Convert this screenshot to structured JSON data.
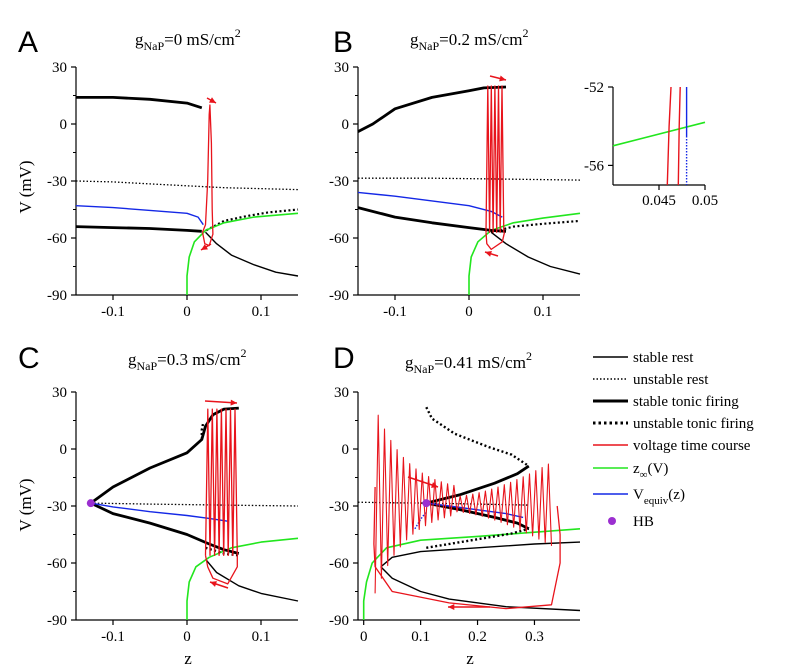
{
  "colors": {
    "rest": "#000000",
    "voltage": "#e8141c",
    "zinf": "#22e61e",
    "vequiv": "#1428e6",
    "hb": "#9b2fd0"
  },
  "panel_labels": {
    "A": "A",
    "B": "B",
    "C": "C",
    "D": "D"
  },
  "panel_titles": {
    "A": {
      "pre": "g",
      "sub": "NaP",
      "post": "=0 mS/cm",
      "sup": "2"
    },
    "B": {
      "pre": "g",
      "sub": "NaP",
      "post": "=0.2 mS/cm",
      "sup": "2"
    },
    "C": {
      "pre": "g",
      "sub": "NaP",
      "post": "=0.3 mS/cm",
      "sup": "2"
    },
    "D": {
      "pre": "g",
      "sub": "NaP",
      "post": "=0.41 mS/cm",
      "sup": "2"
    }
  },
  "axis_labels": {
    "y": "V (mV)",
    "x": "z"
  },
  "legend": {
    "stable_rest": "stable rest",
    "unstable_rest": "unstable rest",
    "stable_tonic": "stable tonic firing",
    "unstable_tonic": "unstable tonic firing",
    "voltage": "voltage time course",
    "zinf_pre": "z",
    "zinf_sub": "∞",
    "zinf_post": "(V)",
    "vequiv_pre": "V",
    "vequiv_sub": "equiv",
    "vequiv_post": "(z)",
    "hb": "HB"
  },
  "chart_data": [
    {
      "panel": "A",
      "type": "line",
      "xlim": [
        -0.15,
        0.15
      ],
      "ylim": [
        -90,
        30
      ],
      "xticks": [
        -0.1,
        0,
        0.1
      ],
      "xtick_labels": [
        "-0.1",
        "0",
        "0.1"
      ],
      "yticks": [
        -90,
        -60,
        -30,
        0,
        30
      ],
      "ytick_labels": [
        "-90",
        "-60",
        "-30",
        "0",
        "30"
      ],
      "series": {
        "stable_tonic_upper": [
          [
            -0.15,
            14
          ],
          [
            -0.1,
            14
          ],
          [
            -0.05,
            13
          ],
          [
            0,
            11
          ],
          [
            0.02,
            8.5
          ]
        ],
        "stable_tonic_lower": [
          [
            -0.15,
            -54
          ],
          [
            -0.1,
            -54.5
          ],
          [
            -0.05,
            -55
          ],
          [
            0,
            -56
          ],
          [
            0.02,
            -56.5
          ]
        ],
        "stable_rest": [
          [
            0.025,
            -57
          ],
          [
            0.04,
            -63
          ],
          [
            0.06,
            -69
          ],
          [
            0.09,
            -74
          ],
          [
            0.12,
            -78
          ],
          [
            0.15,
            -80
          ]
        ],
        "unstable_rest": [
          [
            -0.15,
            -30
          ],
          [
            -0.1,
            -30.5
          ],
          [
            -0.05,
            -31.5
          ],
          [
            0,
            -32.5
          ],
          [
            0.05,
            -33.5
          ],
          [
            0.15,
            -34.5
          ]
        ],
        "unstable_tonic": [
          [
            0.026,
            -56
          ],
          [
            0.05,
            -51
          ],
          [
            0.08,
            -48.5
          ],
          [
            0.11,
            -46.5
          ],
          [
            0.15,
            -45
          ]
        ],
        "zinf": [
          [
            0,
            -90
          ],
          [
            0,
            -80
          ],
          [
            0.003,
            -70
          ],
          [
            0.01,
            -62
          ],
          [
            0.025,
            -56
          ],
          [
            0.05,
            -52
          ],
          [
            0.09,
            -49
          ],
          [
            0.15,
            -47
          ]
        ],
        "vequiv": [
          [
            -0.15,
            -43
          ],
          [
            -0.1,
            -44
          ],
          [
            -0.05,
            -45.5
          ],
          [
            0,
            -47
          ],
          [
            0.015,
            -49
          ],
          [
            0.022,
            -53
          ]
        ],
        "voltage": [
          [
            0.021,
            -57
          ],
          [
            0.025,
            -53
          ],
          [
            0.028,
            -30
          ],
          [
            0.03,
            5
          ],
          [
            0.031,
            10
          ],
          [
            0.033,
            -10
          ],
          [
            0.034,
            -45
          ],
          [
            0.035,
            -58
          ],
          [
            0.03,
            -64
          ],
          [
            0.024,
            -63
          ],
          [
            0.021,
            -57
          ]
        ]
      }
    },
    {
      "panel": "B",
      "type": "line",
      "xlim": [
        -0.15,
        0.15
      ],
      "ylim": [
        -90,
        30
      ],
      "xticks": [
        -0.1,
        0,
        0.1
      ],
      "xtick_labels": [
        "-0.1",
        "0",
        "0.1"
      ],
      "yticks": [
        -90,
        -60,
        -30,
        0,
        30
      ],
      "ytick_labels": [
        "-90",
        "-60",
        "-30",
        "0",
        "30"
      ],
      "series": {
        "stable_tonic_upper": [
          [
            -0.15,
            -4
          ],
          [
            -0.13,
            0
          ],
          [
            -0.1,
            8
          ],
          [
            -0.05,
            14
          ],
          [
            0,
            17.5
          ],
          [
            0.02,
            19
          ],
          [
            0.05,
            19.5
          ]
        ],
        "stable_tonic_lower": [
          [
            -0.15,
            -44
          ],
          [
            -0.1,
            -49
          ],
          [
            -0.05,
            -52
          ],
          [
            0,
            -54.5
          ],
          [
            0.03,
            -56
          ],
          [
            0.05,
            -56.5
          ]
        ],
        "stable_rest": [
          [
            0.03,
            -57
          ],
          [
            0.05,
            -63
          ],
          [
            0.08,
            -70
          ],
          [
            0.11,
            -75
          ],
          [
            0.15,
            -79
          ]
        ],
        "unstable_rest": [
          [
            -0.15,
            -28.5
          ],
          [
            -0.05,
            -28.5
          ],
          [
            0.05,
            -29
          ],
          [
            0.15,
            -29.5
          ]
        ],
        "unstable_tonic": [
          [
            0.03,
            -57
          ],
          [
            0.06,
            -54
          ],
          [
            0.1,
            -52.5
          ],
          [
            0.15,
            -51
          ]
        ],
        "zinf": [
          [
            0,
            -90
          ],
          [
            0,
            -80
          ],
          [
            0.003,
            -70
          ],
          [
            0.012,
            -62
          ],
          [
            0.03,
            -56
          ],
          [
            0.06,
            -52
          ],
          [
            0.1,
            -49.5
          ],
          [
            0.15,
            -47
          ]
        ],
        "vequiv": [
          [
            -0.15,
            -36
          ],
          [
            -0.1,
            -38
          ],
          [
            -0.05,
            -40.5
          ],
          [
            0,
            -43
          ],
          [
            0.03,
            -46
          ],
          [
            0.045,
            -49
          ]
        ],
        "voltage_cycles": 5,
        "voltage_zrange": [
          0.023,
          0.047
        ],
        "voltage_vrange": [
          -57,
          20
        ]
      },
      "inset": {
        "xlim": [
          0.04,
          0.05
        ],
        "ylim": [
          -57,
          -52
        ],
        "xticks": [
          0.045,
          0.05
        ],
        "xtick_labels": [
          "0.045",
          "0.05"
        ],
        "yticks": [
          -56,
          -52
        ],
        "ytick_labels": [
          "-56",
          "-52"
        ],
        "zinf": [
          [
            0.04,
            -55
          ],
          [
            0.05,
            -53.8
          ]
        ],
        "voltage_a": [
          [
            0.0463,
            -52
          ],
          [
            0.0461,
            -54
          ],
          [
            0.0459,
            -57
          ]
        ],
        "voltage_b": [
          [
            0.0473,
            -52
          ],
          [
            0.0472,
            -54
          ],
          [
            0.0471,
            -57
          ]
        ],
        "vequiv_solid": [
          [
            0.048,
            -52
          ],
          [
            0.048,
            -54.5
          ]
        ],
        "vequiv_dotted": [
          [
            0.048,
            -54.5
          ],
          [
            0.048,
            -57
          ]
        ]
      }
    },
    {
      "panel": "C",
      "type": "line",
      "xlim": [
        -0.15,
        0.15
      ],
      "ylim": [
        -90,
        30
      ],
      "xticks": [
        -0.1,
        0,
        0.1
      ],
      "xtick_labels": [
        "-0.1",
        "0",
        "0.1"
      ],
      "yticks": [
        -90,
        -60,
        -30,
        0,
        30
      ],
      "ytick_labels": [
        "-90",
        "-60",
        "-30",
        "0",
        "30"
      ],
      "hb": [
        -0.13,
        -28.5
      ],
      "series": {
        "stable_tonic_upper": [
          [
            -0.13,
            -28.5
          ],
          [
            -0.1,
            -20
          ],
          [
            -0.05,
            -10
          ],
          [
            0,
            -2
          ],
          [
            0.02,
            5
          ],
          [
            0.025,
            12
          ],
          [
            0.035,
            18
          ],
          [
            0.05,
            21
          ],
          [
            0.07,
            21.5
          ]
        ],
        "stable_tonic_lower": [
          [
            -0.13,
            -28.5
          ],
          [
            -0.1,
            -34
          ],
          [
            -0.05,
            -39
          ],
          [
            0,
            -45
          ],
          [
            0.03,
            -50
          ],
          [
            0.05,
            -53
          ],
          [
            0.07,
            -55
          ]
        ],
        "stable_rest": [
          [
            0.025,
            -58
          ],
          [
            0.04,
            -65
          ],
          [
            0.07,
            -72
          ],
          [
            0.1,
            -76
          ],
          [
            0.15,
            -80
          ]
        ],
        "unstable_rest": [
          [
            -0.13,
            -28.5
          ],
          [
            -0.05,
            -29
          ],
          [
            0.05,
            -29.5
          ],
          [
            0.15,
            -30
          ]
        ],
        "unstable_tonic_upper": [
          [
            0.02,
            5
          ],
          [
            0.02,
            10
          ],
          [
            0.022,
            14
          ]
        ],
        "unstable_tonic_lower": [
          [
            0.025,
            -52
          ],
          [
            0.05,
            -55
          ],
          [
            0.07,
            -56
          ]
        ],
        "zinf": [
          [
            0,
            -90
          ],
          [
            0,
            -80
          ],
          [
            0.003,
            -70
          ],
          [
            0.012,
            -62
          ],
          [
            0.03,
            -57
          ],
          [
            0.06,
            -52
          ],
          [
            0.1,
            -49
          ],
          [
            0.15,
            -47
          ]
        ],
        "vequiv": [
          [
            -0.13,
            -28.5
          ],
          [
            -0.1,
            -30.5
          ],
          [
            -0.05,
            -33
          ],
          [
            0,
            -35
          ],
          [
            0.03,
            -36.5
          ],
          [
            0.055,
            -38
          ]
        ],
        "voltage_cycles": 7,
        "voltage_zrange": [
          0.025,
          0.068
        ],
        "voltage_vrange": [
          -56,
          21
        ]
      }
    },
    {
      "panel": "D",
      "type": "line",
      "xlim": [
        -0.01,
        0.38
      ],
      "ylim": [
        -90,
        30
      ],
      "xticks": [
        0,
        0.1,
        0.2,
        0.3
      ],
      "xtick_labels": [
        "0",
        "0.1",
        "0.2",
        "0.3"
      ],
      "yticks": [
        -90,
        -60,
        -30,
        0,
        30
      ],
      "ytick_labels": [
        "-90",
        "-60",
        "-30",
        "0",
        "30"
      ],
      "hb": [
        0.11,
        -28.5
      ],
      "series": {
        "stable_rest_lower": [
          [
            0.03,
            -62
          ],
          [
            0.05,
            -68
          ],
          [
            0.1,
            -75
          ],
          [
            0.15,
            -79
          ],
          [
            0.25,
            -83
          ],
          [
            0.38,
            -85
          ]
        ],
        "stable_rest_upper": [
          [
            0.03,
            -62
          ],
          [
            0.05,
            -57
          ],
          [
            0.1,
            -54
          ],
          [
            0.2,
            -52
          ],
          [
            0.3,
            -50
          ],
          [
            0.38,
            -49
          ]
        ],
        "unstable_rest": [
          [
            -0.01,
            -28
          ],
          [
            0.05,
            -28.3
          ],
          [
            0.11,
            -28.5
          ],
          [
            0.2,
            -29
          ],
          [
            0.29,
            -29.5
          ]
        ],
        "stable_tonic_upper": [
          [
            0.11,
            -28.5
          ],
          [
            0.17,
            -24
          ],
          [
            0.23,
            -18
          ],
          [
            0.27,
            -13
          ],
          [
            0.29,
            -9
          ]
        ],
        "stable_tonic_lower": [
          [
            0.11,
            -28.5
          ],
          [
            0.17,
            -32
          ],
          [
            0.23,
            -36
          ],
          [
            0.27,
            -39
          ],
          [
            0.29,
            -42
          ]
        ],
        "unstable_tonic_upper": [
          [
            0.11,
            22
          ],
          [
            0.12,
            16
          ],
          [
            0.16,
            8
          ],
          [
            0.22,
            1
          ],
          [
            0.26,
            -3
          ],
          [
            0.29,
            -9
          ]
        ],
        "unstable_tonic_lower": [
          [
            0.11,
            -52
          ],
          [
            0.15,
            -50
          ],
          [
            0.21,
            -47
          ],
          [
            0.26,
            -44.5
          ],
          [
            0.29,
            -42
          ]
        ],
        "zinf": [
          [
            0,
            -90
          ],
          [
            0,
            -80
          ],
          [
            0.005,
            -70
          ],
          [
            0.015,
            -60
          ],
          [
            0.04,
            -52
          ],
          [
            0.1,
            -48
          ],
          [
            0.2,
            -46
          ],
          [
            0.38,
            -42
          ]
        ],
        "vequiv_solid": [
          [
            0.11,
            -28.5
          ],
          [
            0.15,
            -30
          ],
          [
            0.2,
            -32
          ],
          [
            0.25,
            -34
          ],
          [
            0.28,
            -36
          ]
        ],
        "vequiv_dotted": [
          [
            0.09,
            -42
          ],
          [
            0.1,
            -37
          ],
          [
            0.11,
            -33
          ]
        ],
        "voltage_cycles": 28,
        "voltage_zrange": [
          0.02,
          0.33
        ]
      }
    }
  ]
}
